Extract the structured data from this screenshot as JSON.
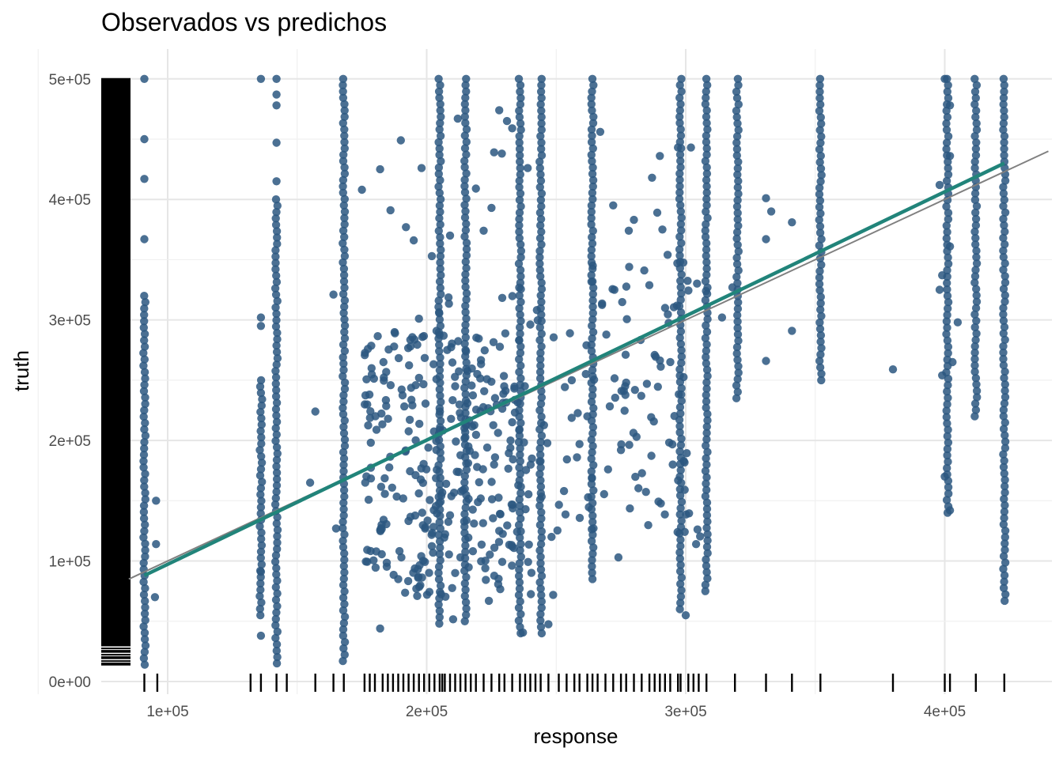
{
  "chart_data": {
    "type": "scatter",
    "title": "Observados vs predichos",
    "xlabel": "response",
    "ylabel": "truth",
    "x_ticks": [
      100000,
      200000,
      300000,
      400000
    ],
    "x_tick_labels": [
      "1e+05",
      "2e+05",
      "3e+05",
      "4e+05"
    ],
    "y_ticks": [
      0,
      100000,
      200000,
      300000,
      400000,
      500000
    ],
    "y_tick_labels": [
      "0e+00",
      "1e+05",
      "2e+05",
      "3e+05",
      "4e+05",
      "5e+05"
    ],
    "xlim": [
      75000,
      440000
    ],
    "ylim": [
      -12000,
      525000
    ],
    "grid": true,
    "point_color": "#2c5780",
    "smooth_line_color": "#21847a",
    "identity_line_color": "#808080",
    "rug_color": "#000000",
    "identity_line": {
      "from": 85000,
      "to": 440000
    },
    "smooth_line": {
      "x": [
        91000,
        423000
      ],
      "y": [
        88000,
        430000
      ]
    },
    "columns": [
      {
        "x": 91000,
        "ymin": 14000,
        "ymax": 320000,
        "outliers": [
          500000,
          450000,
          417000,
          367000
        ]
      },
      {
        "x": 95500,
        "ymin": 70000,
        "ymax": 70000,
        "outliers": [
          114000,
          150000
        ]
      },
      {
        "x": 136000,
        "ymin": 55000,
        "ymax": 250000,
        "outliers": [
          500000,
          302000,
          295000,
          91000,
          38000
        ]
      },
      {
        "x": 142000,
        "ymin": 15000,
        "ymax": 400000,
        "outliers": [
          500000,
          487000,
          478000,
          447000,
          415000
        ]
      },
      {
        "x": 168000,
        "ymin": 17000,
        "ymax": 500000,
        "outliers": []
      },
      {
        "x": 205000,
        "ymin": 48000,
        "ymax": 500000,
        "outliers": []
      },
      {
        "x": 215000,
        "ymin": 50000,
        "ymax": 500000,
        "outliers": []
      },
      {
        "x": 236000,
        "ymin": 40000,
        "ymax": 500000,
        "outliers": []
      },
      {
        "x": 244000,
        "ymin": 40000,
        "ymax": 500000,
        "outliers": []
      },
      {
        "x": 264000,
        "ymin": 85000,
        "ymax": 500000,
        "outliers": []
      },
      {
        "x": 298000,
        "ymin": 60000,
        "ymax": 500000,
        "outliers": []
      },
      {
        "x": 308000,
        "ymin": 75000,
        "ymax": 500000,
        "outliers": []
      },
      {
        "x": 320000,
        "ymin": 235000,
        "ymax": 500000,
        "outliers": []
      },
      {
        "x": 352000,
        "ymin": 250000,
        "ymax": 500000,
        "outliers": []
      },
      {
        "x": 401000,
        "ymin": 140000,
        "ymax": 500000,
        "outliers": []
      },
      {
        "x": 412000,
        "ymin": 220000,
        "ymax": 500000,
        "outliers": []
      },
      {
        "x": 423000,
        "ymin": 67000,
        "ymax": 500000,
        "outliers": []
      }
    ],
    "scatter_points": [
      [
        157000,
        224000
      ],
      [
        155000,
        165000
      ],
      [
        165000,
        127000
      ],
      [
        164000,
        321000
      ],
      [
        175000,
        408000
      ],
      [
        182000,
        425000
      ],
      [
        186000,
        391000
      ],
      [
        190000,
        449000
      ],
      [
        192000,
        377000
      ],
      [
        195000,
        366000
      ],
      [
        197000,
        301000
      ],
      [
        198000,
        426000
      ],
      [
        202000,
        353000
      ],
      [
        209000,
        370000
      ],
      [
        211000,
        245000
      ],
      [
        212000,
        467000
      ],
      [
        219000,
        409000
      ],
      [
        222000,
        374000
      ],
      [
        225000,
        393000
      ],
      [
        226000,
        439000
      ],
      [
        228000,
        474000
      ],
      [
        229000,
        438000
      ],
      [
        231000,
        465000
      ],
      [
        233000,
        459000
      ],
      [
        239000,
        426000
      ],
      [
        182000,
        44000
      ],
      [
        189000,
        85000
      ],
      [
        196000,
        77000
      ],
      [
        211000,
        90000
      ],
      [
        224000,
        67000
      ],
      [
        226000,
        180000
      ],
      [
        233000,
        112000
      ],
      [
        228000,
        125000
      ],
      [
        253000,
        158000
      ],
      [
        256000,
        250000
      ],
      [
        258000,
        186000
      ],
      [
        259000,
        197000
      ],
      [
        262000,
        220000
      ],
      [
        267000,
        456000
      ],
      [
        270000,
        176000
      ],
      [
        272000,
        395000
      ],
      [
        274000,
        103000
      ],
      [
        275000,
        192000
      ],
      [
        277000,
        248000
      ],
      [
        278000,
        374000
      ],
      [
        280000,
        383000
      ],
      [
        281000,
        203000
      ],
      [
        284000,
        341000
      ],
      [
        285000,
        247000
      ],
      [
        287000,
        418000
      ],
      [
        289000,
        389000
      ],
      [
        290000,
        436000
      ],
      [
        291000,
        375000
      ],
      [
        293000,
        354000
      ],
      [
        295000,
        180000
      ],
      [
        297000,
        443000
      ],
      [
        300000,
        55000
      ],
      [
        302000,
        443000
      ],
      [
        304000,
        114000
      ],
      [
        314000,
        302000
      ],
      [
        318000,
        327000
      ],
      [
        331000,
        401000
      ],
      [
        331000,
        367000
      ],
      [
        331000,
        266000
      ],
      [
        333000,
        390000
      ],
      [
        341000,
        381000
      ],
      [
        341000,
        291000
      ],
      [
        380000,
        259000
      ],
      [
        398000,
        412000
      ],
      [
        398000,
        325000
      ],
      [
        400000,
        500000
      ],
      [
        399000,
        254000
      ],
      [
        402000,
        478000
      ],
      [
        402000,
        436000
      ],
      [
        402000,
        361000
      ],
      [
        403000,
        265000
      ],
      [
        399000,
        337000
      ],
      [
        400000,
        170000
      ],
      [
        402000,
        142000
      ],
      [
        405000,
        298000
      ]
    ],
    "rug_x": [
      91000,
      96000,
      132000,
      136000,
      142000,
      146000,
      157000,
      164000,
      168000,
      176000,
      178000,
      180000,
      183000,
      185000,
      187000,
      189000,
      191000,
      193000,
      195000,
      197000,
      199000,
      201000,
      203000,
      205000,
      206000,
      207000,
      209000,
      211000,
      213000,
      215000,
      217000,
      219000,
      222000,
      225000,
      228000,
      230000,
      233000,
      236000,
      238000,
      240000,
      242000,
      244000,
      247000,
      251000,
      254000,
      257000,
      259000,
      262000,
      264000,
      266000,
      269000,
      272000,
      275000,
      277000,
      280000,
      283000,
      286000,
      288000,
      290000,
      292000,
      294000,
      297000,
      298000,
      301000,
      303000,
      305000,
      308000,
      319000,
      331000,
      341000,
      352000,
      380000,
      400000,
      402000,
      412000,
      423000
    ]
  }
}
